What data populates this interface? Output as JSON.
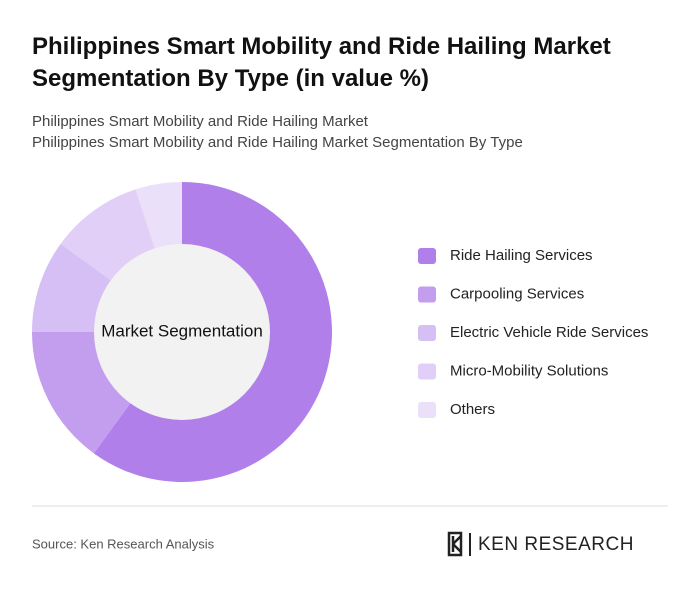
{
  "chart_data": {
    "type": "donut",
    "title": "Philippines Smart Mobility and Ride Hailing Market Segmentation By Type (in value %)",
    "subtitle": [
      "Philippines Smart Mobility and Ride Hailing Market",
      "Philippines Smart Mobility and Ride Hailing Market Segmentation By Type"
    ],
    "center_label": "Market Segmentation",
    "categories": [
      "Ride Hailing Services",
      "Carpooling Services",
      "Electric Vehicle Ride Services",
      "Micro-Mobility Solutions",
      "Others"
    ],
    "values": [
      60,
      15,
      10,
      10,
      5
    ],
    "colors": [
      "#b07fea",
      "#c39eef",
      "#d6bff5",
      "#e1cff8",
      "#ebe0fa"
    ]
  },
  "source": "Source: Ken Research Analysis",
  "logo": "KEN RESEARCH"
}
